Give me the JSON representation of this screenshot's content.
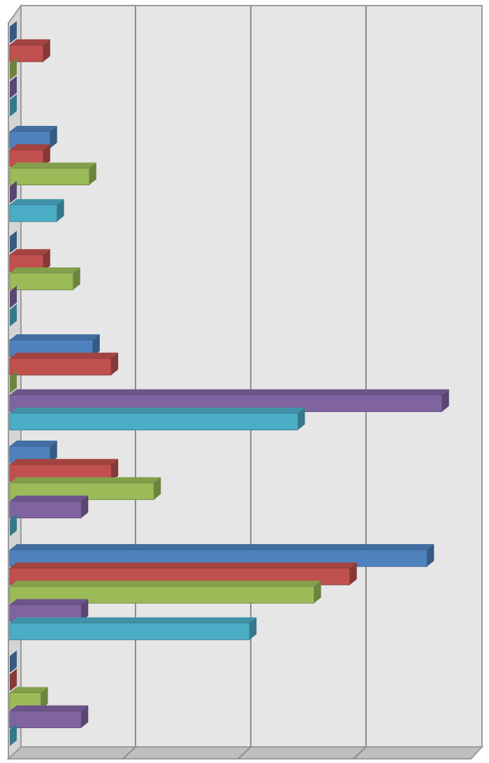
{
  "chart_data": {
    "type": "bar",
    "orientation": "horizontal",
    "style": "3d",
    "grid": true,
    "xlim": [
      0,
      4
    ],
    "categories": [
      "",
      "",
      "",
      "",
      "",
      "",
      ""
    ],
    "series": [
      {
        "color": "#4F81BD",
        "values": [
          0,
          0.35,
          0,
          0.72,
          0.35,
          3.62,
          0
        ]
      },
      {
        "color": "#C0504D",
        "values": [
          0.29,
          0.29,
          0.29,
          0.88,
          0.88,
          2.95,
          0
        ]
      },
      {
        "color": "#9BBB59",
        "values": [
          0,
          0.69,
          0.55,
          0,
          1.25,
          2.64,
          0.27
        ]
      },
      {
        "color": "#8064A2",
        "values": [
          0,
          0,
          0,
          3.75,
          0.62,
          0.62,
          0.62
        ]
      },
      {
        "color": "#4BACC6",
        "values": [
          0,
          0.41,
          0,
          2.5,
          0,
          2.08,
          0
        ]
      }
    ]
  }
}
